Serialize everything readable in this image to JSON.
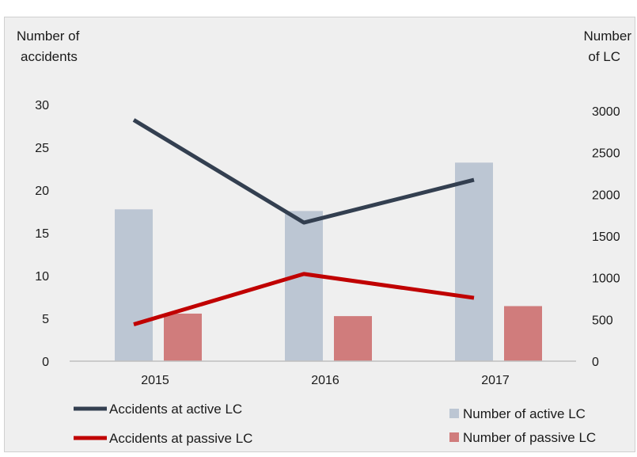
{
  "chart_data": {
    "type": "bar",
    "categories": [
      "2015",
      "2016",
      "2017"
    ],
    "left_axis": {
      "label_lines": [
        "Number of",
        "accidents"
      ],
      "ticks": [
        0,
        5,
        10,
        15,
        20,
        25,
        30
      ],
      "range": [
        0,
        30
      ]
    },
    "right_axis": {
      "label_lines": [
        "Number",
        "of LC"
      ],
      "ticks": [
        0,
        500,
        1000,
        1500,
        2000,
        2500,
        3000
      ],
      "range": [
        0,
        3000
      ]
    },
    "series": [
      {
        "name": "Accidents at active LC",
        "kind": "line",
        "axis": "left",
        "color": "#333f50",
        "values": [
          28.2,
          16.2,
          21.2
        ]
      },
      {
        "name": "Accidents at passive LC",
        "kind": "line",
        "axis": "left",
        "color": "#c00000",
        "values": [
          4.3,
          10.2,
          7.4
        ]
      },
      {
        "name": "Number of active LC",
        "kind": "bar",
        "axis": "right",
        "color": "#bcc6d3",
        "values": [
          1820,
          1800,
          2380
        ]
      },
      {
        "name": "Number of passive LC",
        "kind": "bar",
        "axis": "right",
        "color": "#d07c7c",
        "values": [
          570,
          540,
          660
        ]
      }
    ],
    "grid": false,
    "legend_position": "bottom"
  }
}
